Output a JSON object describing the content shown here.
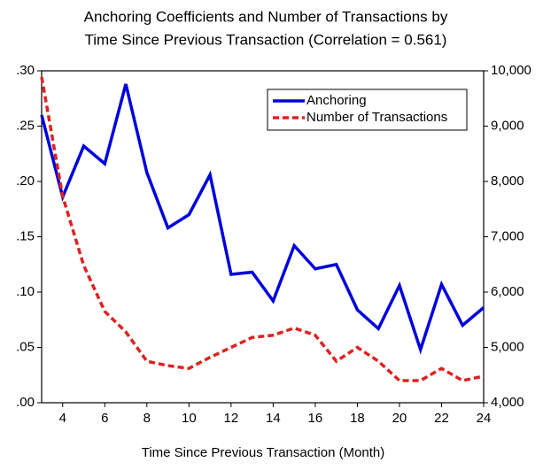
{
  "chart_data": {
    "type": "line",
    "title": "Anchoring Coefficients and Number of Transactions by",
    "subtitle": "Time Since Previous Transaction  (Correlation = 0.561)",
    "x_label": "Time Since Previous Transaction (Month)",
    "x": [
      3,
      4,
      5,
      6,
      7,
      8,
      9,
      10,
      11,
      12,
      13,
      14,
      15,
      16,
      17,
      18,
      19,
      20,
      21,
      22,
      23,
      24
    ],
    "xlim": [
      3,
      24
    ],
    "xticks": [
      4,
      6,
      8,
      10,
      12,
      14,
      16,
      18,
      20,
      22,
      24
    ],
    "ylim": [
      0,
      0.3
    ],
    "yticks": [
      {
        "value": 0,
        "label": ".00"
      },
      {
        "value": 0.05,
        "label": ".05"
      },
      {
        "value": 0.1,
        "label": ".10"
      },
      {
        "value": 0.15,
        "label": ".15"
      },
      {
        "value": 0.2,
        "label": ".20"
      },
      {
        "value": 0.25,
        "label": ".25"
      },
      {
        "value": 0.3,
        "label": ".30"
      }
    ],
    "y2lim": [
      4000,
      10000
    ],
    "y2ticks": [
      {
        "value": 4000,
        "label": "4,000"
      },
      {
        "value": 5000,
        "label": "5,000"
      },
      {
        "value": 6000,
        "label": "6,000"
      },
      {
        "value": 7000,
        "label": "7,000"
      },
      {
        "value": 8000,
        "label": "8,000"
      },
      {
        "value": 9000,
        "label": "9,000"
      },
      {
        "value": 10000,
        "label": "10,000"
      }
    ],
    "legend": "upper right",
    "series": [
      {
        "name": "Anchoring",
        "color": "#0000dd",
        "dash": false,
        "values": [
          0.26,
          0.186,
          0.232,
          0.216,
          0.288,
          0.208,
          0.158,
          0.17,
          0.206,
          0.116,
          0.118,
          0.092,
          0.142,
          0.121,
          0.125,
          0.084,
          0.067,
          0.106,
          0.048,
          0.107,
          0.07,
          0.086
        ]
      },
      {
        "name": "Number of Transactions",
        "color": "#dd2222",
        "dash": true,
        "axis": "y2",
        "values": [
          9888,
          7730,
          6480,
          5650,
          5280,
          4750,
          4670,
          4620,
          4820,
          5000,
          5180,
          5220,
          5350,
          5220,
          4750,
          5000,
          4750,
          4400,
          4400,
          4620,
          4400,
          4480
        ]
      }
    ]
  }
}
